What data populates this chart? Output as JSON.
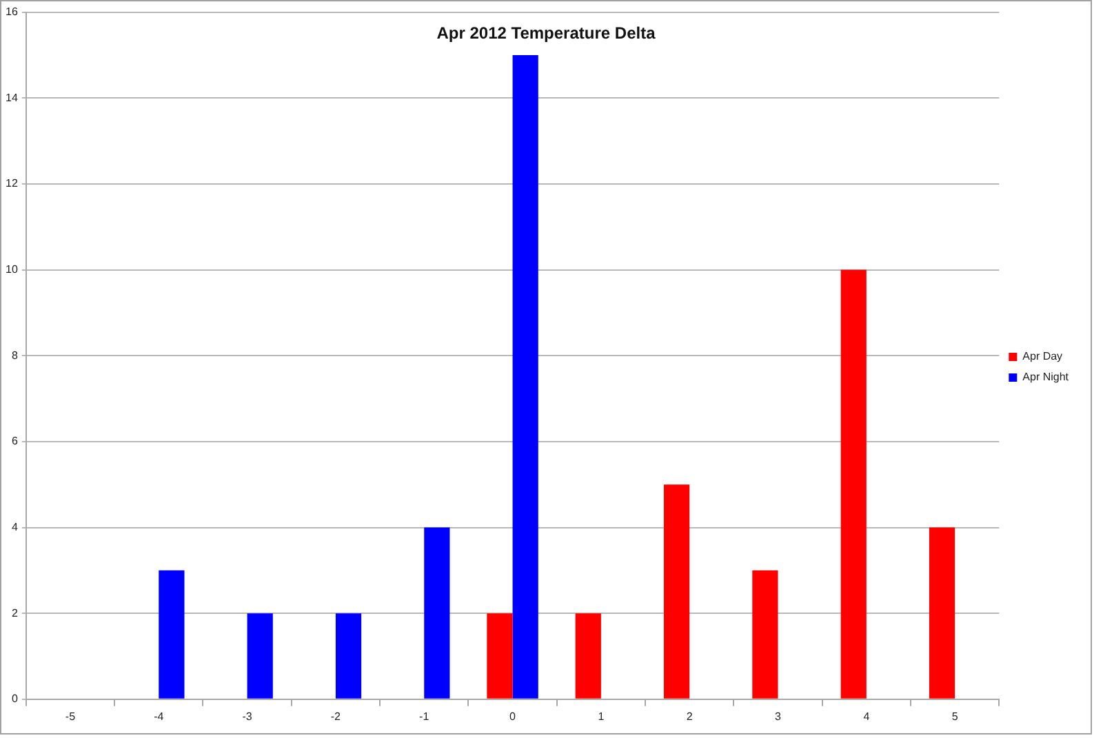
{
  "chart_data": {
    "type": "bar",
    "title": "Apr 2012 Temperature Delta",
    "categories": [
      "-5",
      "-4",
      "-3",
      "-2",
      "-1",
      "0",
      "1",
      "2",
      "3",
      "4",
      "5"
    ],
    "series": [
      {
        "name": "Apr Day",
        "color": "#ff0000",
        "values": [
          null,
          null,
          null,
          null,
          null,
          2,
          2,
          5,
          3,
          10,
          4
        ]
      },
      {
        "name": "Apr Night",
        "color": "#0000ff",
        "values": [
          null,
          3,
          2,
          2,
          4,
          15,
          null,
          null,
          null,
          null,
          null
        ]
      }
    ],
    "ylim": [
      0,
      16
    ],
    "yticks": [
      0,
      2,
      4,
      6,
      8,
      10,
      12,
      14,
      16
    ],
    "grid": "y",
    "legend": "right"
  }
}
